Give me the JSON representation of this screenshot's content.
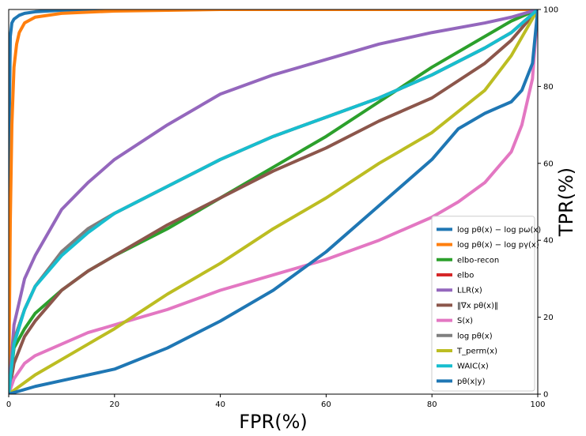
{
  "chart_data": {
    "type": "line",
    "xlabel": "FPR(%)",
    "ylabel": "TPR(%)",
    "xlim": [
      0,
      100
    ],
    "ylim": [
      0,
      100
    ],
    "xticks": [
      "0",
      "20",
      "40",
      "60",
      "80",
      "100"
    ],
    "yticks": [
      "0",
      "20",
      "40",
      "60",
      "80",
      "100"
    ],
    "grid": false,
    "legend_position": "lower right",
    "series": [
      {
        "name": "log pθ(x) − log pω(x)",
        "color": "#1f77b4",
        "x": [
          0,
          0.1,
          0.3,
          0.6,
          1,
          2,
          3,
          5,
          10,
          20,
          100
        ],
        "y": [
          0,
          70,
          93,
          96.5,
          97.5,
          98.5,
          99,
          99.4,
          99.8,
          100,
          100
        ]
      },
      {
        "name": "log pθ(x) − log pγ(x)",
        "color": "#ff7f0e",
        "x": [
          0,
          0.3,
          0.6,
          1,
          1.5,
          2,
          3,
          5,
          10,
          20,
          40,
          100
        ],
        "y": [
          0,
          45,
          70,
          85,
          91,
          94,
          96.5,
          98,
          99,
          99.6,
          100,
          100
        ]
      },
      {
        "name": "elbo-recon",
        "color": "#2ca02c",
        "x": [
          0,
          1,
          3,
          5,
          10,
          15,
          20,
          30,
          40,
          50,
          60,
          70,
          80,
          90,
          95,
          100
        ],
        "y": [
          0,
          12,
          17,
          21,
          27,
          32,
          36,
          43,
          51,
          59,
          67,
          76,
          85,
          93,
          97,
          100
        ]
      },
      {
        "name": "elbo",
        "color": "#d62728",
        "x": [
          0,
          1,
          3,
          5,
          10,
          15,
          20,
          30,
          40,
          50,
          60,
          70,
          80,
          90,
          95,
          100
        ],
        "y": [
          0,
          14,
          22,
          28,
          37,
          43,
          47,
          54,
          61,
          67,
          72,
          77,
          83,
          90,
          94,
          100
        ]
      },
      {
        "name": "LLR(x)",
        "color": "#9467bd",
        "x": [
          0,
          1,
          3,
          5,
          10,
          15,
          20,
          30,
          40,
          50,
          60,
          70,
          80,
          90,
          95,
          100
        ],
        "y": [
          0,
          18,
          30,
          36,
          48,
          55,
          61,
          70,
          78,
          83,
          87,
          91,
          94,
          96.5,
          98,
          100
        ]
      },
      {
        "name": "‖∇x pθ(x)‖",
        "color": "#8c564b",
        "x": [
          0,
          1,
          3,
          5,
          10,
          15,
          20,
          30,
          40,
          50,
          60,
          70,
          80,
          90,
          95,
          100
        ],
        "y": [
          0,
          8,
          15,
          19,
          27,
          32,
          36,
          44,
          51,
          58,
          64,
          71,
          77,
          86,
          92,
          100
        ]
      },
      {
        "name": "S(x)",
        "color": "#e377c2",
        "x": [
          0,
          1,
          3,
          5,
          10,
          15,
          20,
          30,
          40,
          50,
          60,
          70,
          80,
          85,
          90,
          95,
          97,
          99,
          100
        ],
        "y": [
          0,
          4,
          8,
          10,
          13,
          16,
          18,
          22,
          27,
          31,
          35,
          40,
          46,
          50,
          55,
          63,
          70,
          82,
          100
        ]
      },
      {
        "name": "log pθ(x)",
        "color": "#7f7f7f",
        "x": [
          0,
          1,
          3,
          5,
          10,
          15,
          20,
          30,
          40,
          50,
          60,
          70,
          80,
          90,
          95,
          100
        ],
        "y": [
          0,
          14,
          22,
          28,
          37,
          43,
          47,
          54,
          61,
          67,
          72,
          77,
          83,
          90,
          94,
          100
        ]
      },
      {
        "name": "T_perm(x)",
        "color": "#bcbd22",
        "x": [
          0,
          1,
          3,
          5,
          10,
          15,
          20,
          30,
          40,
          50,
          60,
          70,
          80,
          90,
          95,
          100
        ],
        "y": [
          0,
          1,
          3,
          5,
          9,
          13,
          17,
          26,
          34,
          43,
          51,
          60,
          68,
          79,
          88,
          100
        ]
      },
      {
        "name": "WAIC(x)",
        "color": "#17becf",
        "x": [
          0,
          1,
          3,
          5,
          10,
          15,
          20,
          30,
          40,
          50,
          60,
          70,
          80,
          90,
          95,
          100
        ],
        "y": [
          0,
          13,
          22,
          28,
          36,
          42,
          47,
          54,
          61,
          67,
          72,
          77,
          83,
          90,
          94,
          100
        ]
      },
      {
        "name": "pθ(x|y)",
        "color": "#1f77b4",
        "x": [
          0,
          5,
          10,
          20,
          30,
          40,
          50,
          55,
          60,
          70,
          80,
          85,
          90,
          95,
          97,
          99,
          100
        ],
        "y": [
          0,
          2,
          3.5,
          6.5,
          12,
          19,
          27,
          32,
          37,
          49,
          61,
          69,
          73,
          76,
          79,
          86,
          100
        ]
      }
    ]
  }
}
